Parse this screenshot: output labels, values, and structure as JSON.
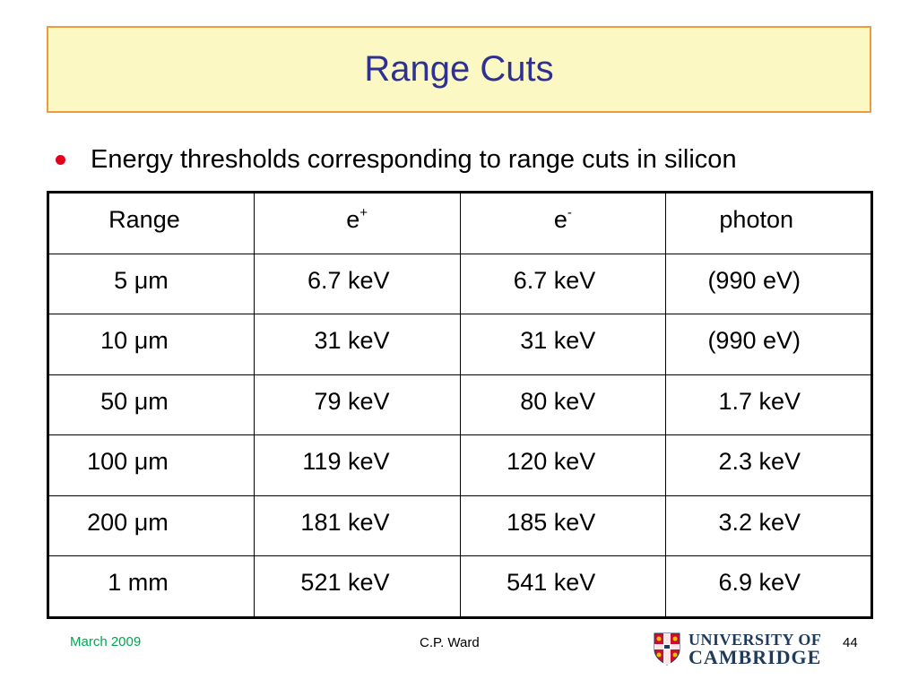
{
  "slide": {
    "title": "Range Cuts",
    "bullet": "Energy thresholds corresponding to range cuts in silicon"
  },
  "table": {
    "headers": {
      "range": "Range",
      "eplus_base": "e",
      "eplus_sup": "+",
      "eminus_base": "e",
      "eminus_sup": "-",
      "photon": "photon"
    },
    "rows": [
      {
        "range": "5 μm",
        "eplus": "6.7 keV",
        "eminus": "6.7 keV",
        "photon": "(990 eV)"
      },
      {
        "range": "10 μm",
        "eplus": "31 keV",
        "eminus": "31 keV",
        "photon": "(990 eV)"
      },
      {
        "range": "50 μm",
        "eplus": "79 keV",
        "eminus": "80 keV",
        "photon": "1.7 keV"
      },
      {
        "range": "100 μm",
        "eplus": "119 keV",
        "eminus": "120 keV",
        "photon": "2.3 keV"
      },
      {
        "range": "200 μm",
        "eplus": "181 keV",
        "eminus": "185 keV",
        "photon": "3.2 keV"
      },
      {
        "range": "1 mm",
        "eplus": "521 keV",
        "eminus": "541 keV",
        "photon": "6.9 keV"
      }
    ]
  },
  "footer": {
    "date": "March 2009",
    "author": "C.P. Ward",
    "page": "44",
    "logo_line1": "UNIVERSITY OF",
    "logo_line2": "CAMBRIDGE"
  },
  "colors": {
    "title_text": "#2e3192",
    "title_bg": "#fcf8c4",
    "title_border": "#ef9a3c",
    "bullet": "#e2001a",
    "date": "#00a651"
  }
}
